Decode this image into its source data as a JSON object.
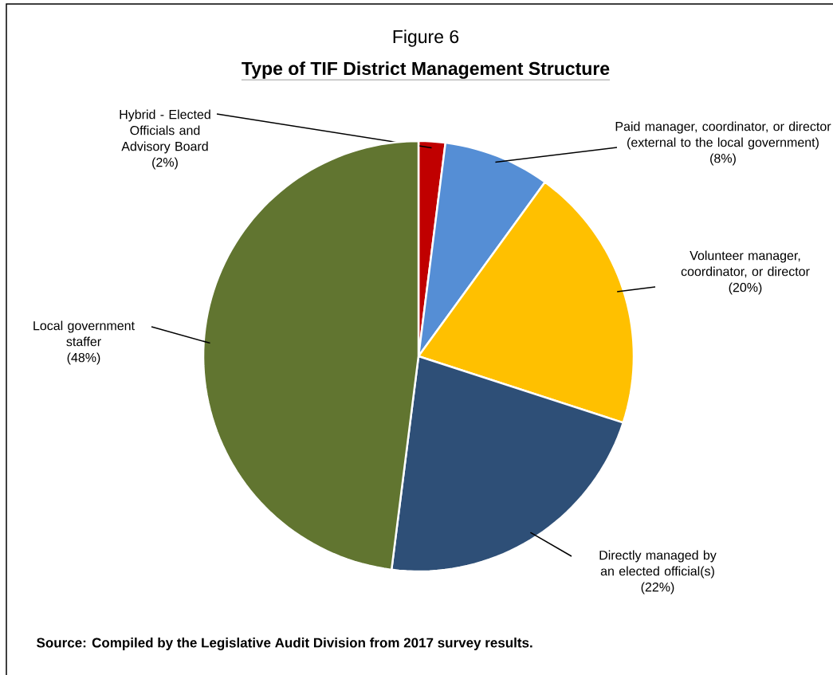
{
  "chart_data": {
    "type": "pie",
    "title": "Figure 6",
    "subtitle": "**Type of TIF District Management Structure**",
    "categories": [
      "Hybrid - Elected Officials and Advisory Board",
      "Paid manager, coordinator, or director (external to the local government)",
      "Volunteer manager, coordinator, or director",
      "Directly managed by an elected official(s)",
      "Local government staffer"
    ],
    "values": [
      2,
      8,
      20,
      22,
      48
    ],
    "value_labels": [
      "(2%)",
      "(8%)",
      "(20%)",
      "(22%)",
      "(48%)"
    ],
    "colors": [
      "#c00000",
      "#558ed5",
      "#ffc000",
      "#2e4f77",
      "#617530"
    ],
    "annotations": [
      "**Source:  Compiled by the Legislative Audit Division from 2017 survey results.**"
    ]
  }
}
